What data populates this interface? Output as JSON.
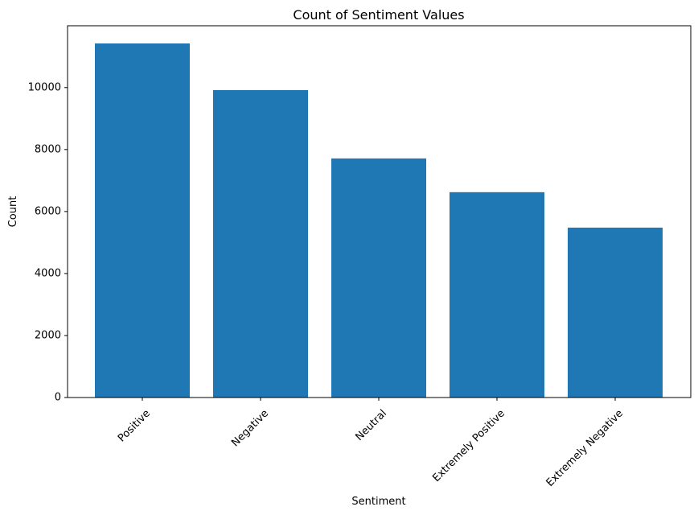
{
  "chart_data": {
    "type": "bar",
    "title": "Count of Sentiment Values",
    "xlabel": "Sentiment",
    "ylabel": "Count",
    "categories": [
      "Positive",
      "Negative",
      "Neutral",
      "Extremely Positive",
      "Extremely Negative"
    ],
    "values": [
      11422,
      9917,
      7713,
      6624,
      5481
    ],
    "ylim": [
      0,
      12000
    ],
    "yticks": [
      0,
      2000,
      4000,
      6000,
      8000,
      10000
    ],
    "grid": false,
    "bar_color": "#1f77b4"
  }
}
